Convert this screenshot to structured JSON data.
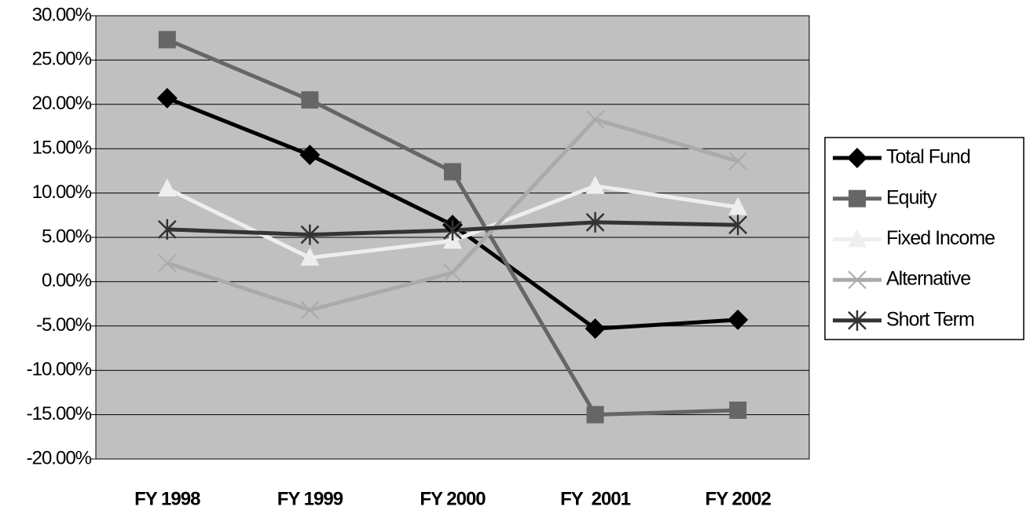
{
  "chart_data": {
    "type": "line",
    "categories": [
      "FY 1998",
      "FY 1999",
      "FY 2000",
      "FY  2001",
      "FY 2002"
    ],
    "series": [
      {
        "name": "Total Fund",
        "color": "#000000",
        "marker": "diamond",
        "values": [
          20.7,
          14.3,
          6.4,
          -5.3,
          -4.3
        ]
      },
      {
        "name": "Equity",
        "color": "#666666",
        "marker": "square",
        "values": [
          27.3,
          20.5,
          12.4,
          -15.0,
          -14.5
        ]
      },
      {
        "name": "Fixed Income",
        "color": "#eeeeee",
        "marker": "triangle",
        "values": [
          10.5,
          2.7,
          4.6,
          10.8,
          8.4
        ]
      },
      {
        "name": "Alternative",
        "color": "#aaaaaa",
        "marker": "x",
        "values": [
          2.1,
          -3.2,
          1.0,
          18.3,
          13.6
        ]
      },
      {
        "name": "Short Term",
        "color": "#333333",
        "marker": "asterisk",
        "values": [
          5.9,
          5.3,
          5.8,
          6.7,
          6.4
        ]
      }
    ],
    "ylim": [
      -20,
      30
    ],
    "yticks": [
      {
        "value": -20,
        "label": "-20.00%"
      },
      {
        "value": -15,
        "label": "-15.00%"
      },
      {
        "value": -10,
        "label": "-10.00%"
      },
      {
        "value": -5,
        "label": "-5.00%"
      },
      {
        "value": 0,
        "label": "0.00%"
      },
      {
        "value": 5,
        "label": "5.00%"
      },
      {
        "value": 10,
        "label": "10.00%"
      },
      {
        "value": 15,
        "label": "15.00%"
      },
      {
        "value": 20,
        "label": "20.00%"
      },
      {
        "value": 25,
        "label": "25.00%"
      },
      {
        "value": 30,
        "label": "30.00%"
      }
    ],
    "grid": true,
    "legend": "right",
    "plot_background": "#c0c0c0"
  }
}
